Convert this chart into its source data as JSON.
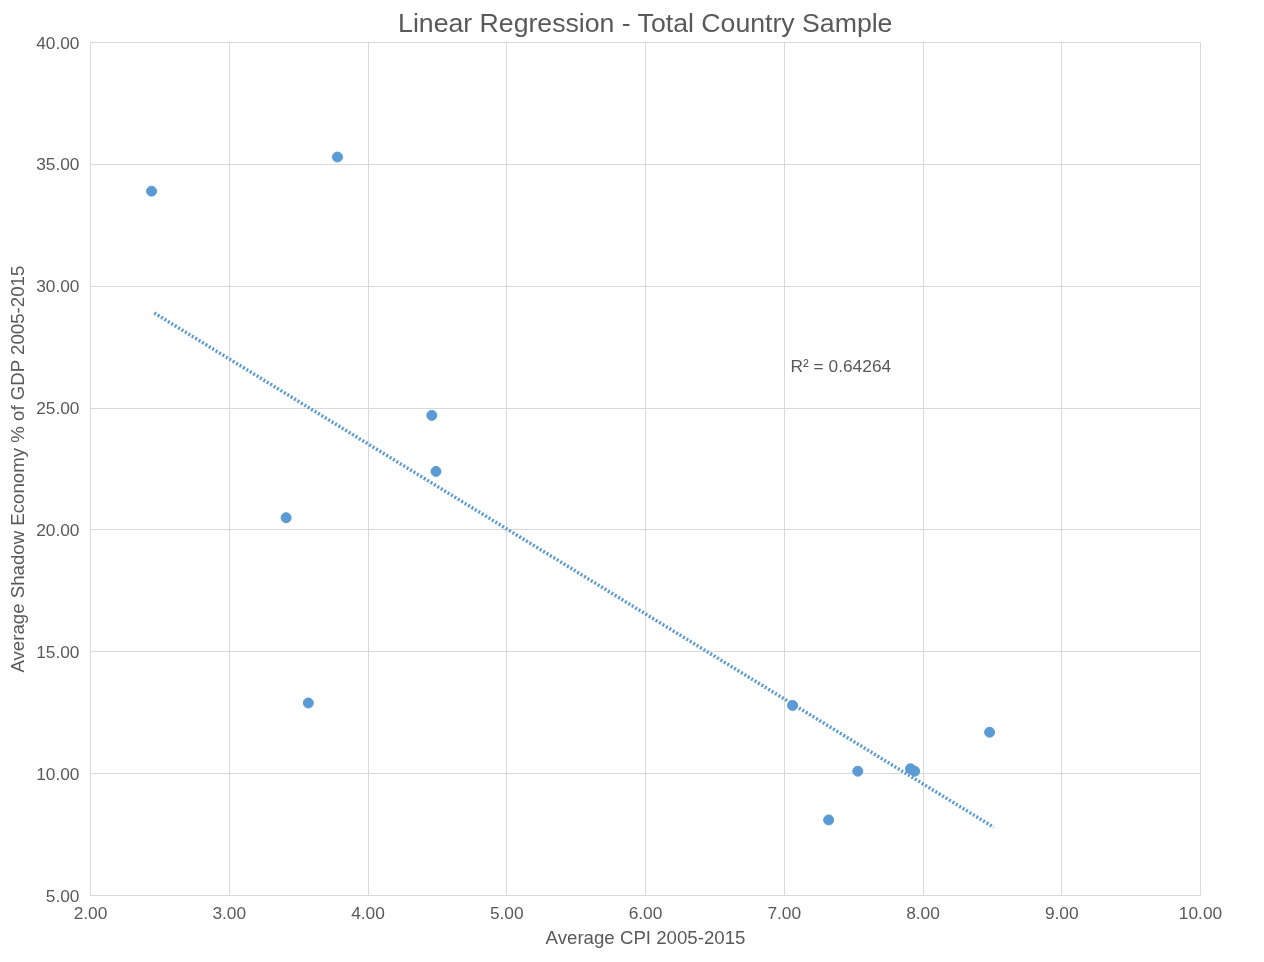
{
  "chart_data": {
    "type": "scatter",
    "title": "Linear Regression - Total Country Sample",
    "xlabel": "Average CPI 2005-2015",
    "ylabel": "Average Shadow Economy % of GDP 2005-2015",
    "xlim": [
      2,
      10
    ],
    "xticks": [
      {
        "value": 2,
        "label": "2.00"
      },
      {
        "value": 3,
        "label": "3.00"
      },
      {
        "value": 4,
        "label": "4.00"
      },
      {
        "value": 5,
        "label": "5.00"
      },
      {
        "value": 6,
        "label": "6.00"
      },
      {
        "value": 7,
        "label": "7.00"
      },
      {
        "value": 8,
        "label": "8.00"
      },
      {
        "value": 9,
        "label": "9.00"
      },
      {
        "value": 10,
        "label": "10.00"
      }
    ],
    "ylim": [
      5,
      40
    ],
    "yticks": [
      {
        "value": 5,
        "label": "5.00"
      },
      {
        "value": 10,
        "label": "10.00"
      },
      {
        "value": 15,
        "label": "15.00"
      },
      {
        "value": 20,
        "label": "20.00"
      },
      {
        "value": 25,
        "label": "25.00"
      },
      {
        "value": 30,
        "label": "30.00"
      },
      {
        "value": 35,
        "label": "35.00"
      },
      {
        "value": 40,
        "label": "40.00"
      }
    ],
    "grid": true,
    "marker": "circle",
    "series": [
      {
        "color": "#5b9bd5",
        "x": [
          2.44,
          3.78,
          4.46,
          4.49,
          3.41,
          3.57,
          7.06,
          7.53,
          7.32,
          7.91,
          7.94,
          8.48
        ],
        "values": [
          33.9,
          35.3,
          24.7,
          22.4,
          20.5,
          12.9,
          12.8,
          10.1,
          8.1,
          10.2,
          10.1,
          11.7
        ]
      },
      {
        "type": "line",
        "color": "#5b9bd5",
        "line_style": "dotted",
        "marker": "none",
        "x": [
          2.46,
          8.51
        ],
        "values": [
          28.9,
          7.8
        ]
      }
    ],
    "annotations": [
      "R² = 0.64264"
    ]
  }
}
